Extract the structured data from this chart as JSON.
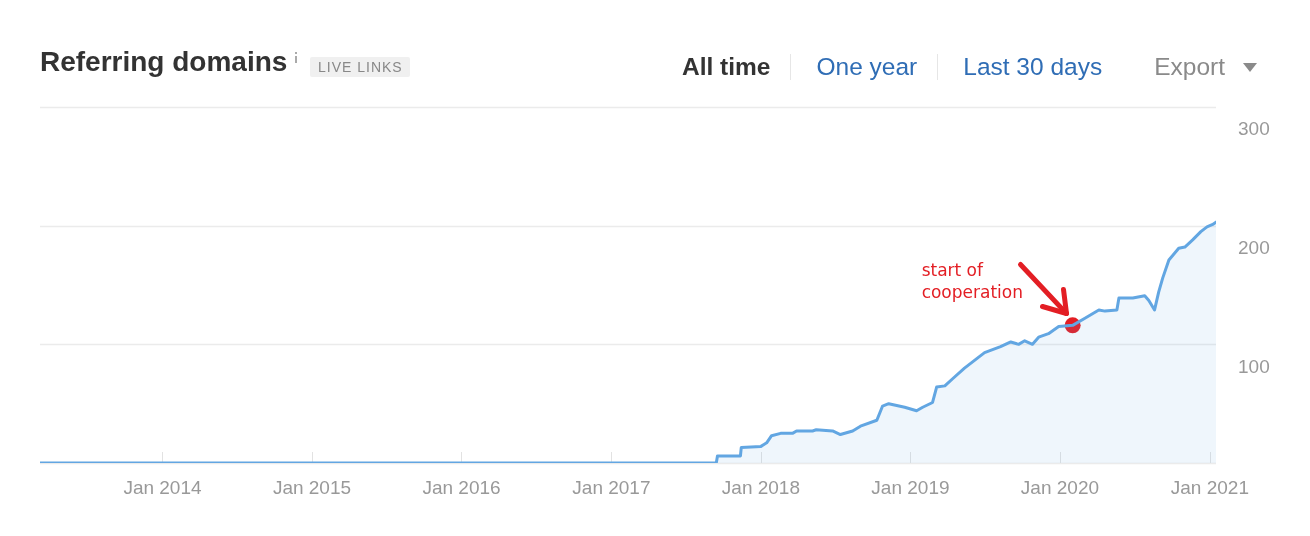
{
  "chart_data": {
    "type": "area",
    "title": "Referring domains",
    "subtitle": "LIVE LINKS",
    "x": [
      "2013-03-08",
      "2017-09-14",
      "2017-09-17",
      "2017-11-12",
      "2017-11-14",
      "2018-01-01",
      "2018-01-15",
      "2018-01-27",
      "2018-02-18",
      "2018-03-19",
      "2018-03-29",
      "2018-05-07",
      "2018-05-16",
      "2018-06-25",
      "2018-07-14",
      "2018-08-13",
      "2018-09-01",
      "2018-10-11",
      "2018-10-25",
      "2018-11-09",
      "2018-12-18",
      "2019-01-16",
      "2019-01-31",
      "2019-02-24",
      "2019-03-06",
      "2019-03-26",
      "2019-04-14",
      "2019-05-13",
      "2019-06-12",
      "2019-07-01",
      "2019-08-09",
      "2019-09-03",
      "2019-09-22",
      "2019-10-07",
      "2019-10-26",
      "2019-11-10",
      "2019-12-04",
      "2019-12-29",
      "2020-02-01",
      "2020-03-02",
      "2020-04-05",
      "2020-04-20",
      "2020-05-19",
      "2020-05-24",
      "2020-06-27",
      "2020-07-26",
      "2020-08-05",
      "2020-08-19",
      "2020-08-29",
      "2020-09-08",
      "2020-09-23",
      "2020-10-17",
      "2020-11-01",
      "2020-11-20",
      "2020-12-10",
      "2020-12-25",
      "2021-01-08",
      "2021-01-16"
    ],
    "series": [
      {
        "color": "#62a6e2",
        "values": [
          0,
          0,
          6,
          6,
          13,
          14,
          17,
          23,
          25,
          25,
          27,
          27,
          28,
          27,
          24,
          27,
          31,
          36,
          48,
          50,
          47,
          44,
          47,
          51,
          64,
          65,
          71,
          80,
          88,
          93,
          98,
          102,
          100,
          103,
          100,
          106,
          109,
          115,
          116,
          122,
          129,
          128,
          129,
          139,
          139,
          141,
          137,
          129,
          144,
          156,
          171,
          181,
          182,
          188,
          195,
          199,
          201,
          203
        ]
      },
      {
        "type": "scatter",
        "color": "#e31e24",
        "x": [
          "2020-02-01"
        ],
        "values": [
          116
        ]
      }
    ],
    "xlim": [
      "2013-03-08",
      "2021-01-16"
    ],
    "xticks": [
      {
        "value": "2014-01-01",
        "label": "Jan 2014"
      },
      {
        "value": "2015-01-01",
        "label": "Jan 2015"
      },
      {
        "value": "2016-01-01",
        "label": "Jan 2016"
      },
      {
        "value": "2017-01-01",
        "label": "Jan 2017"
      },
      {
        "value": "2018-01-01",
        "label": "Jan 2018"
      },
      {
        "value": "2019-01-01",
        "label": "Jan 2019"
      },
      {
        "value": "2020-01-01",
        "label": "Jan 2020"
      },
      {
        "value": "2021-01-01",
        "label": "Jan 2021"
      }
    ],
    "ylim": [
      0,
      300
    ],
    "yticks": [
      {
        "value": 0,
        "label": null
      },
      100,
      200,
      300
    ],
    "grid": "y",
    "annotations": [
      "All time",
      "One year",
      "Last 30 days",
      "Export",
      "start of cooperation"
    ]
  }
}
